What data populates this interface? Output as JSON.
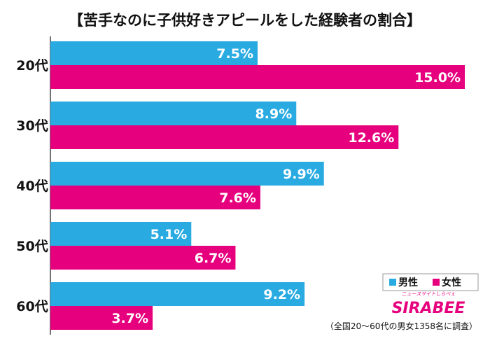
{
  "chart_data": {
    "type": "bar",
    "orientation": "horizontal",
    "title": "【苦手なのに子供好きアピールをした経験者の割合】",
    "categories": [
      "20代",
      "30代",
      "40代",
      "50代",
      "60代"
    ],
    "series": [
      {
        "name": "男性",
        "color": "#29abe2",
        "values": [
          7.5,
          8.9,
          9.9,
          5.1,
          9.2
        ],
        "labels": [
          "7.5%",
          "8.9%",
          "9.9%",
          "5.1%",
          "9.2%"
        ]
      },
      {
        "name": "女性",
        "color": "#e6007e",
        "values": [
          15.0,
          12.6,
          7.6,
          6.7,
          3.7
        ],
        "labels": [
          "15.0%",
          "12.6%",
          "7.6%",
          "6.7%",
          "3.7%"
        ]
      }
    ],
    "xlim": [
      0,
      15
    ],
    "grid": false,
    "legend_position": "bottom-right"
  },
  "logo": {
    "main": "SIRABEE",
    "sub": "ニュースサイトしらべぇ"
  },
  "note": "（全国20～60代の男女1358名に調査）"
}
